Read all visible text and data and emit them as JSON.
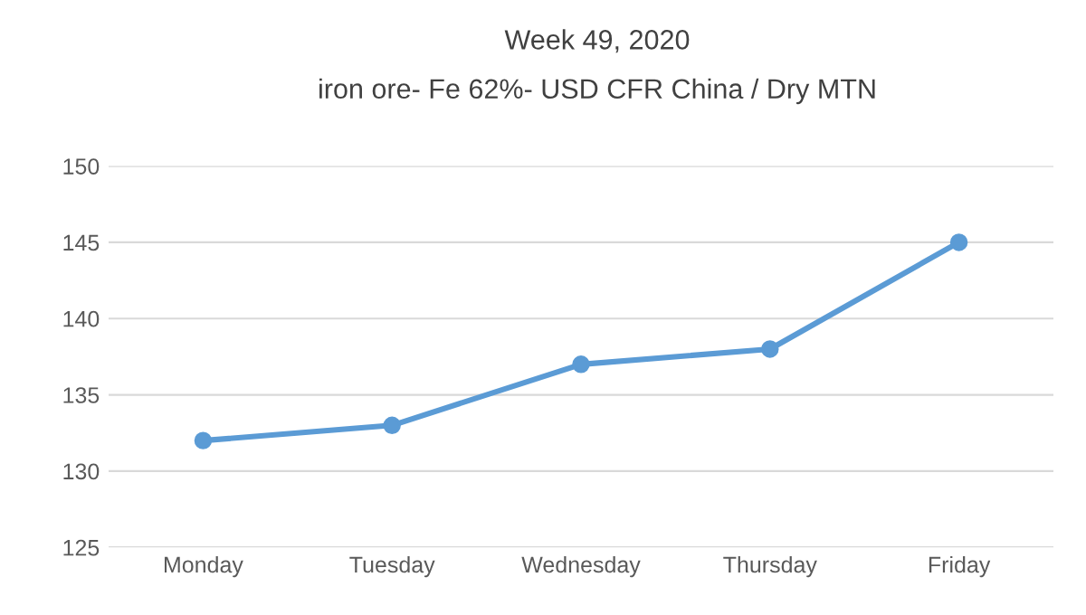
{
  "chart_data": {
    "type": "line",
    "title": "Week 49, 2020",
    "subtitle": "iron ore- Fe 62%- USD CFR China / Dry MTN",
    "categories": [
      "Monday",
      "Tuesday",
      "Wednesday",
      "Thursday",
      "Friday"
    ],
    "series": [
      {
        "color": "#5b9bd5",
        "values": [
          132,
          133,
          137,
          138,
          145
        ]
      }
    ],
    "ylim": [
      125,
      150
    ],
    "yticks": [
      125,
      130,
      135,
      140,
      145,
      150
    ],
    "grid": "y",
    "marker": "circle",
    "line_style": "solid",
    "legend": false
  }
}
